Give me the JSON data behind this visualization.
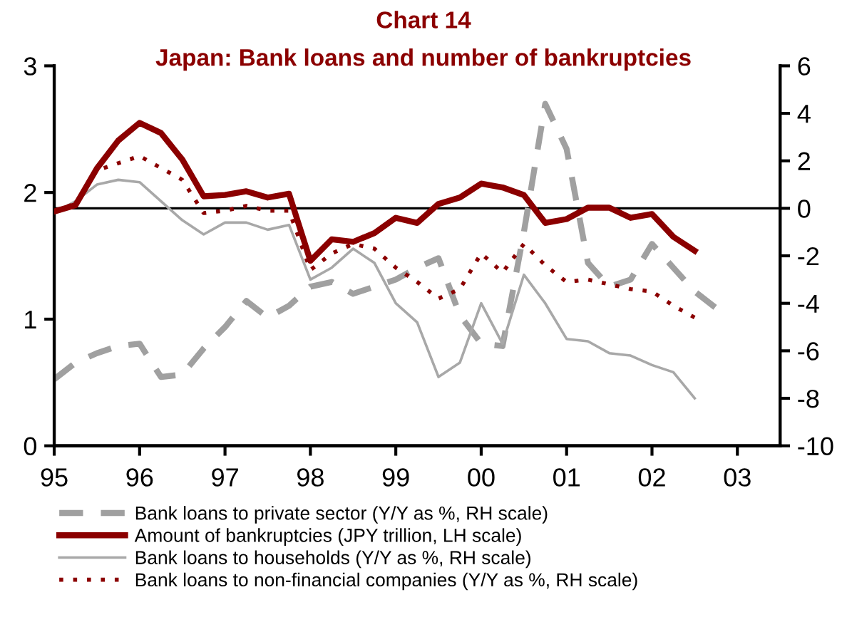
{
  "chart_data": {
    "type": "line",
    "title": "Chart 14",
    "subtitle": "Japan: Bank loans and number of bankruptcies",
    "xlim": [
      1995,
      2003.5
    ],
    "xticks": [
      {
        "value": 1995,
        "label": "95"
      },
      {
        "value": 1996,
        "label": "96"
      },
      {
        "value": 1997,
        "label": "97"
      },
      {
        "value": 1998,
        "label": "98"
      },
      {
        "value": 1999,
        "label": "99"
      },
      {
        "value": 2000,
        "label": "00"
      },
      {
        "value": 2001,
        "label": "01"
      },
      {
        "value": 2002,
        "label": "02"
      },
      {
        "value": 2003,
        "label": "03"
      }
    ],
    "ylim": [
      0,
      3
    ],
    "yticks": [
      0,
      1,
      2,
      3
    ],
    "y2lim": [
      -10,
      6
    ],
    "y2ticks": [
      -10,
      -8,
      -6,
      -4,
      -2,
      0,
      2,
      4,
      6
    ],
    "ref_lines": [
      {
        "axis": "y2",
        "value": 0,
        "color": "#000000"
      }
    ],
    "legend": "bottom",
    "grid": false,
    "marker": "none",
    "series": [
      {
        "name": "Bank loans to private sector (Y/Y as %, RH scale)",
        "color": "#a0a0a0",
        "axis": "y2",
        "line_style": "dashed",
        "x": [
          1995,
          1995.25,
          1995.5,
          1995.75,
          1996,
          1996.25,
          1996.5,
          1996.75,
          1997,
          1997.25,
          1997.5,
          1997.75,
          1998,
          1998.25,
          1998.5,
          1998.75,
          1999,
          1999.25,
          1999.5,
          1999.75,
          2000,
          2000.25,
          2000.5,
          2000.75,
          2001,
          2001.25,
          2001.5,
          2001.75,
          2002,
          2002.25,
          2002.5,
          2002.75
        ],
        "values": [
          -7.2,
          -6.5,
          -6.1,
          -5.8,
          -5.7,
          -7.1,
          -7.0,
          -5.9,
          -5.0,
          -3.9,
          -4.6,
          -4.1,
          -3.3,
          -3.1,
          -3.6,
          -3.3,
          -3.0,
          -2.5,
          -2.1,
          -4.5,
          -5.7,
          -5.8,
          -1.0,
          4.4,
          2.5,
          -2.3,
          -3.3,
          -3.0,
          -1.5,
          -2.5,
          -3.5,
          -4.2
        ]
      },
      {
        "name": "Amount of bankruptcies (JPY trillion, LH scale)",
        "color": "#8b0000",
        "axis": "y",
        "line_style": "solid",
        "x": [
          1995,
          1995.25,
          1995.5,
          1995.75,
          1996,
          1996.25,
          1996.5,
          1996.75,
          1997,
          1997.25,
          1997.5,
          1997.75,
          1998,
          1998.25,
          1998.5,
          1998.75,
          1999,
          1999.25,
          1999.5,
          1999.75,
          2000,
          2000.25,
          2000.5,
          2000.75,
          2001,
          2001.25,
          2001.5,
          2001.75,
          2002,
          2002.25,
          2002.5
        ],
        "values": [
          1.85,
          1.9,
          2.19,
          2.41,
          2.55,
          2.47,
          2.26,
          1.97,
          1.98,
          2.01,
          1.96,
          1.99,
          1.46,
          1.63,
          1.61,
          1.68,
          1.8,
          1.76,
          1.91,
          1.96,
          2.07,
          2.04,
          1.98,
          1.76,
          1.79,
          1.88,
          1.88,
          1.8,
          1.83,
          1.65,
          1.54
        ]
      },
      {
        "name": "Bank loans to households (Y/Y as %, RH scale)",
        "color": "#a8a8a8",
        "axis": "y2",
        "line_style": "solid",
        "x": [
          1995,
          1995.25,
          1995.5,
          1995.75,
          1996,
          1996.25,
          1996.5,
          1996.75,
          1997,
          1997.25,
          1997.5,
          1997.75,
          1998,
          1998.25,
          1998.5,
          1998.75,
          1999,
          1999.25,
          1999.5,
          1999.75,
          2000,
          2000.25,
          2000.5,
          2000.75,
          2001,
          2001.25,
          2001.5,
          2001.75,
          2002,
          2002.25,
          2002.5
        ],
        "values": [
          -0.2,
          0.3,
          1.0,
          1.2,
          1.1,
          0.3,
          -0.5,
          -1.1,
          -0.6,
          -0.6,
          -0.9,
          -0.7,
          -3.0,
          -2.5,
          -1.7,
          -2.3,
          -4.0,
          -4.8,
          -7.1,
          -6.5,
          -4.0,
          -5.7,
          -2.8,
          -4.0,
          -5.5,
          -5.6,
          -6.1,
          -6.2,
          -6.6,
          -6.9,
          -8.0
        ]
      },
      {
        "name": "Bank loans to non-financial companies (Y/Y as %, RH scale)",
        "color": "#8b0000",
        "axis": "y2",
        "line_style": "dotted",
        "x": [
          1995,
          1995.25,
          1995.5,
          1995.75,
          1996,
          1996.25,
          1996.5,
          1996.75,
          1997,
          1997.25,
          1997.5,
          1997.75,
          1998,
          1998.25,
          1998.5,
          1998.75,
          1999,
          1999.25,
          1999.5,
          1999.75,
          2000,
          2000.25,
          2000.5,
          2000.75,
          2001,
          2001.25,
          2001.5,
          2001.75,
          2002,
          2002.25,
          2002.5
        ],
        "values": [
          -0.1,
          0.2,
          1.6,
          1.9,
          2.2,
          1.7,
          1.2,
          -0.2,
          -0.1,
          0.1,
          -0.1,
          -0.1,
          -2.6,
          -1.9,
          -1.5,
          -1.7,
          -2.5,
          -3.1,
          -3.8,
          -3.4,
          -1.9,
          -2.7,
          -1.5,
          -2.4,
          -3.1,
          -3.0,
          -3.2,
          -3.4,
          -3.5,
          -4.1,
          -4.6
        ]
      }
    ]
  }
}
